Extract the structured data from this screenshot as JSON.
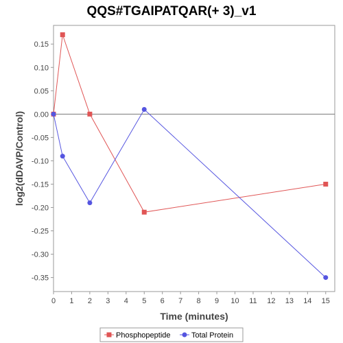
{
  "chart_data": {
    "type": "line",
    "title": "QQS#TGAIPATQAR(+ 3)_v1",
    "xlabel": "Time (minutes)",
    "ylabel": "log2(dDAVP/Control)",
    "xlim": [
      0,
      15.5
    ],
    "ylim": [
      -0.38,
      0.19
    ],
    "x_ticks": [
      0,
      1,
      2,
      3,
      4,
      5,
      6,
      7,
      8,
      9,
      10,
      11,
      12,
      13,
      14,
      15
    ],
    "y_ticks": [
      0.15,
      0.1,
      0.05,
      0.0,
      -0.05,
      -0.1,
      -0.15,
      -0.2,
      -0.25,
      -0.3,
      -0.35
    ],
    "y_tick_labels": [
      "0.15",
      "0.10",
      "0.05",
      "0.00",
      "-0.05",
      "-0.10",
      "-0.15",
      "-0.20",
      "-0.25",
      "-0.30",
      "-0.35"
    ],
    "zero_line": true,
    "grid": false,
    "legend_position": "bottom-center",
    "series": [
      {
        "name": "Phosphopeptide",
        "color": "#e05555",
        "marker": "square",
        "x": [
          0,
          0.5,
          2,
          5,
          15
        ],
        "y": [
          0.0,
          0.17,
          0.0,
          -0.21,
          -0.15
        ]
      },
      {
        "name": "Total Protein",
        "color": "#5555e0",
        "marker": "circle",
        "x": [
          0,
          0.5,
          2,
          5,
          15
        ],
        "y": [
          0.0,
          -0.09,
          -0.19,
          0.01,
          -0.35
        ]
      }
    ]
  }
}
